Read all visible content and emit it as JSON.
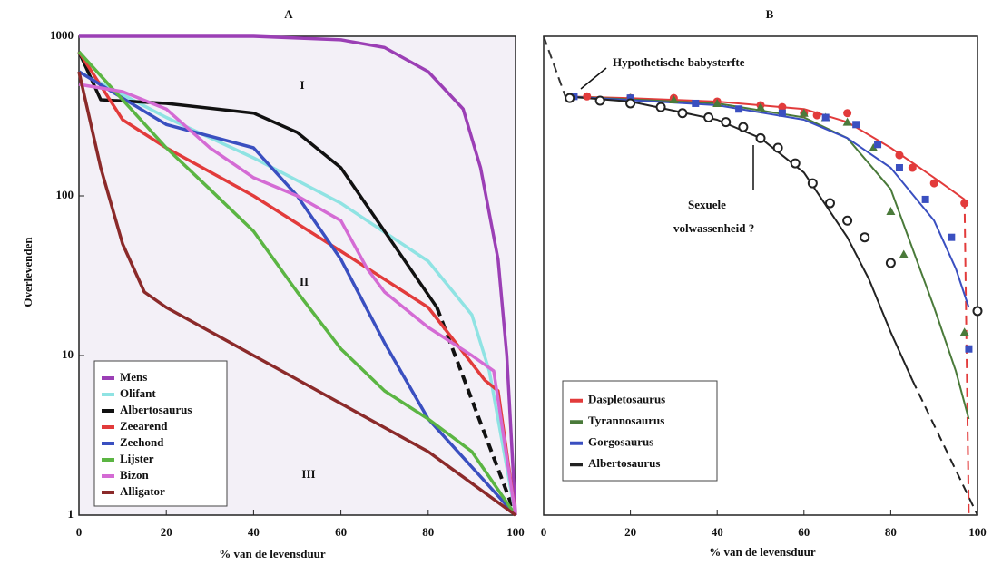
{
  "chart_data": [
    {
      "type": "line",
      "title": "A",
      "x_label": "% van de levensduur",
      "y_label": "Overlevenden",
      "xlim": [
        0,
        100
      ],
      "xticks": [
        0,
        20,
        40,
        60,
        80,
        100
      ],
      "ylim": [
        1,
        1000
      ],
      "yticks": [
        1,
        10,
        100,
        1000
      ],
      "log_y": true,
      "legend": "lower left",
      "annotations": [
        "I",
        "II",
        "III"
      ],
      "series": [
        {
          "name": "Mens",
          "color": "#9b3fb5",
          "x": [
            0,
            40,
            60,
            70,
            80,
            88,
            92,
            96,
            98,
            100
          ],
          "values": [
            1000,
            1000,
            950,
            850,
            600,
            350,
            150,
            40,
            10,
            1
          ]
        },
        {
          "name": "Olifant",
          "color": "#8fe3e3",
          "x": [
            0,
            20,
            40,
            60,
            80,
            90,
            94,
            100
          ],
          "values": [
            600,
            310,
            173,
            90,
            39,
            18,
            8,
            1
          ]
        },
        {
          "name": "Albertosaurus",
          "color": "#111111",
          "x": [
            0,
            5,
            20,
            40,
            50,
            60,
            70,
            82
          ],
          "values": [
            800,
            400,
            380,
            330,
            250,
            150,
            60,
            20
          ]
        },
        {
          "name": "Zeearend",
          "color": "#e23b3b",
          "x": [
            0,
            10,
            20,
            40,
            60,
            80,
            93,
            96,
            100
          ],
          "values": [
            800,
            300,
            200,
            100,
            45,
            20,
            7,
            6,
            1
          ]
        },
        {
          "name": "Zeehond",
          "color": "#3a4fc0",
          "x": [
            0,
            20,
            40,
            50,
            60,
            70,
            80,
            90,
            100
          ],
          "values": [
            600,
            280,
            200,
            100,
            40,
            12,
            4,
            2,
            1
          ]
        },
        {
          "name": "Lijster",
          "color": "#5bb543",
          "x": [
            0,
            20,
            30,
            40,
            50,
            60,
            70,
            80,
            90,
            100
          ],
          "values": [
            800,
            200,
            110,
            60,
            25,
            11,
            6,
            4,
            2.5,
            1
          ]
        },
        {
          "name": "Bizon",
          "color": "#d46bd4",
          "x": [
            0,
            10,
            20,
            30,
            40,
            50,
            60,
            66,
            70,
            80,
            90,
            95,
            100
          ],
          "values": [
            500,
            450,
            350,
            200,
            130,
            100,
            70,
            35,
            25,
            15,
            10,
            8,
            1
          ]
        },
        {
          "name": "Alligator",
          "color": "#8b2a2a",
          "x": [
            0,
            5,
            10,
            15,
            20,
            40,
            60,
            80,
            100
          ],
          "values": [
            600,
            150,
            50,
            25,
            20,
            10,
            5,
            2.5,
            1
          ]
        }
      ],
      "extensions": [
        {
          "color": "#111111",
          "dashed": true,
          "x": [
            82,
            100
          ],
          "values": [
            20,
            1
          ]
        }
      ]
    },
    {
      "type": "line",
      "title": "B",
      "x_label": "% van de levensduur",
      "xlim": [
        0,
        100
      ],
      "xticks": [
        0,
        20,
        40,
        60,
        80,
        100
      ],
      "ylim": [
        1,
        1000
      ],
      "log_y": true,
      "legend": "lower left",
      "annotations": [
        "Hypothetische babysterfte",
        "Sexuele",
        "volwassenheid ?"
      ],
      "series": [
        {
          "name": "Daspletosaurus",
          "color": "#e23b3b",
          "marker": "circle",
          "x": [
            5,
            20,
            40,
            60,
            70,
            80,
            90,
            97
          ],
          "values": [
            420,
            410,
            390,
            350,
            290,
            200,
            130,
            95
          ],
          "markers": {
            "x": [
              10,
              20,
              30,
              40,
              50,
              55,
              60,
              63,
              70,
              82,
              85,
              90,
              97
            ],
            "values": [
              420,
              410,
              410,
              390,
              370,
              360,
              330,
              320,
              330,
              180,
              150,
              120,
              90
            ]
          }
        },
        {
          "name": "Tyrannosaurus",
          "color": "#4a7a3a",
          "marker": "triangle",
          "x": [
            5,
            40,
            60,
            70,
            80,
            90,
            95,
            98
          ],
          "values": [
            420,
            380,
            310,
            230,
            110,
            20,
            8,
            4
          ],
          "markers": {
            "x": [
              20,
              30,
              40,
              50,
              60,
              65,
              70,
              76,
              80,
              83,
              97
            ],
            "values": [
              410,
              400,
              380,
              360,
              330,
              310,
              290,
              200,
              80,
              43,
              14
            ]
          }
        },
        {
          "name": "Gorgosaurus",
          "color": "#3a4fc0",
          "marker": "square",
          "x": [
            5,
            40,
            60,
            70,
            80,
            90,
            95,
            98
          ],
          "values": [
            420,
            370,
            300,
            230,
            150,
            70,
            35,
            20
          ],
          "markers": {
            "x": [
              7,
              20,
              35,
              45,
              55,
              65,
              72,
              77,
              82,
              88,
              94,
              98
            ],
            "values": [
              420,
              410,
              380,
              350,
              330,
              310,
              280,
              210,
              150,
              95,
              55,
              11
            ]
          }
        },
        {
          "name": "Albertosaurus",
          "color": "#222222",
          "marker": "open-circle",
          "x": [
            5,
            20,
            40,
            50,
            60,
            70,
            75,
            80,
            85
          ],
          "values": [
            420,
            390,
            300,
            230,
            140,
            55,
            30,
            14,
            7
          ],
          "markers": {
            "x": [
              6,
              13,
              20,
              27,
              32,
              38,
              42,
              46,
              50,
              54,
              58,
              62,
              66,
              70,
              74,
              80,
              100
            ],
            "values": [
              410,
              395,
              380,
              360,
              330,
              310,
              290,
              270,
              230,
              200,
              160,
              120,
              90,
              70,
              55,
              38,
              19
            ]
          }
        }
      ],
      "extensions": [
        {
          "color": "#333333",
          "dashed": true,
          "x": [
            0,
            5
          ],
          "values": [
            1000,
            420
          ]
        },
        {
          "color": "#222222",
          "dashed": true,
          "x": [
            85,
            100
          ],
          "values": [
            7,
            1
          ]
        },
        {
          "color": "#e23b3b",
          "dashed": true,
          "x": [
            97,
            98
          ],
          "values": [
            95,
            1
          ]
        }
      ]
    }
  ]
}
